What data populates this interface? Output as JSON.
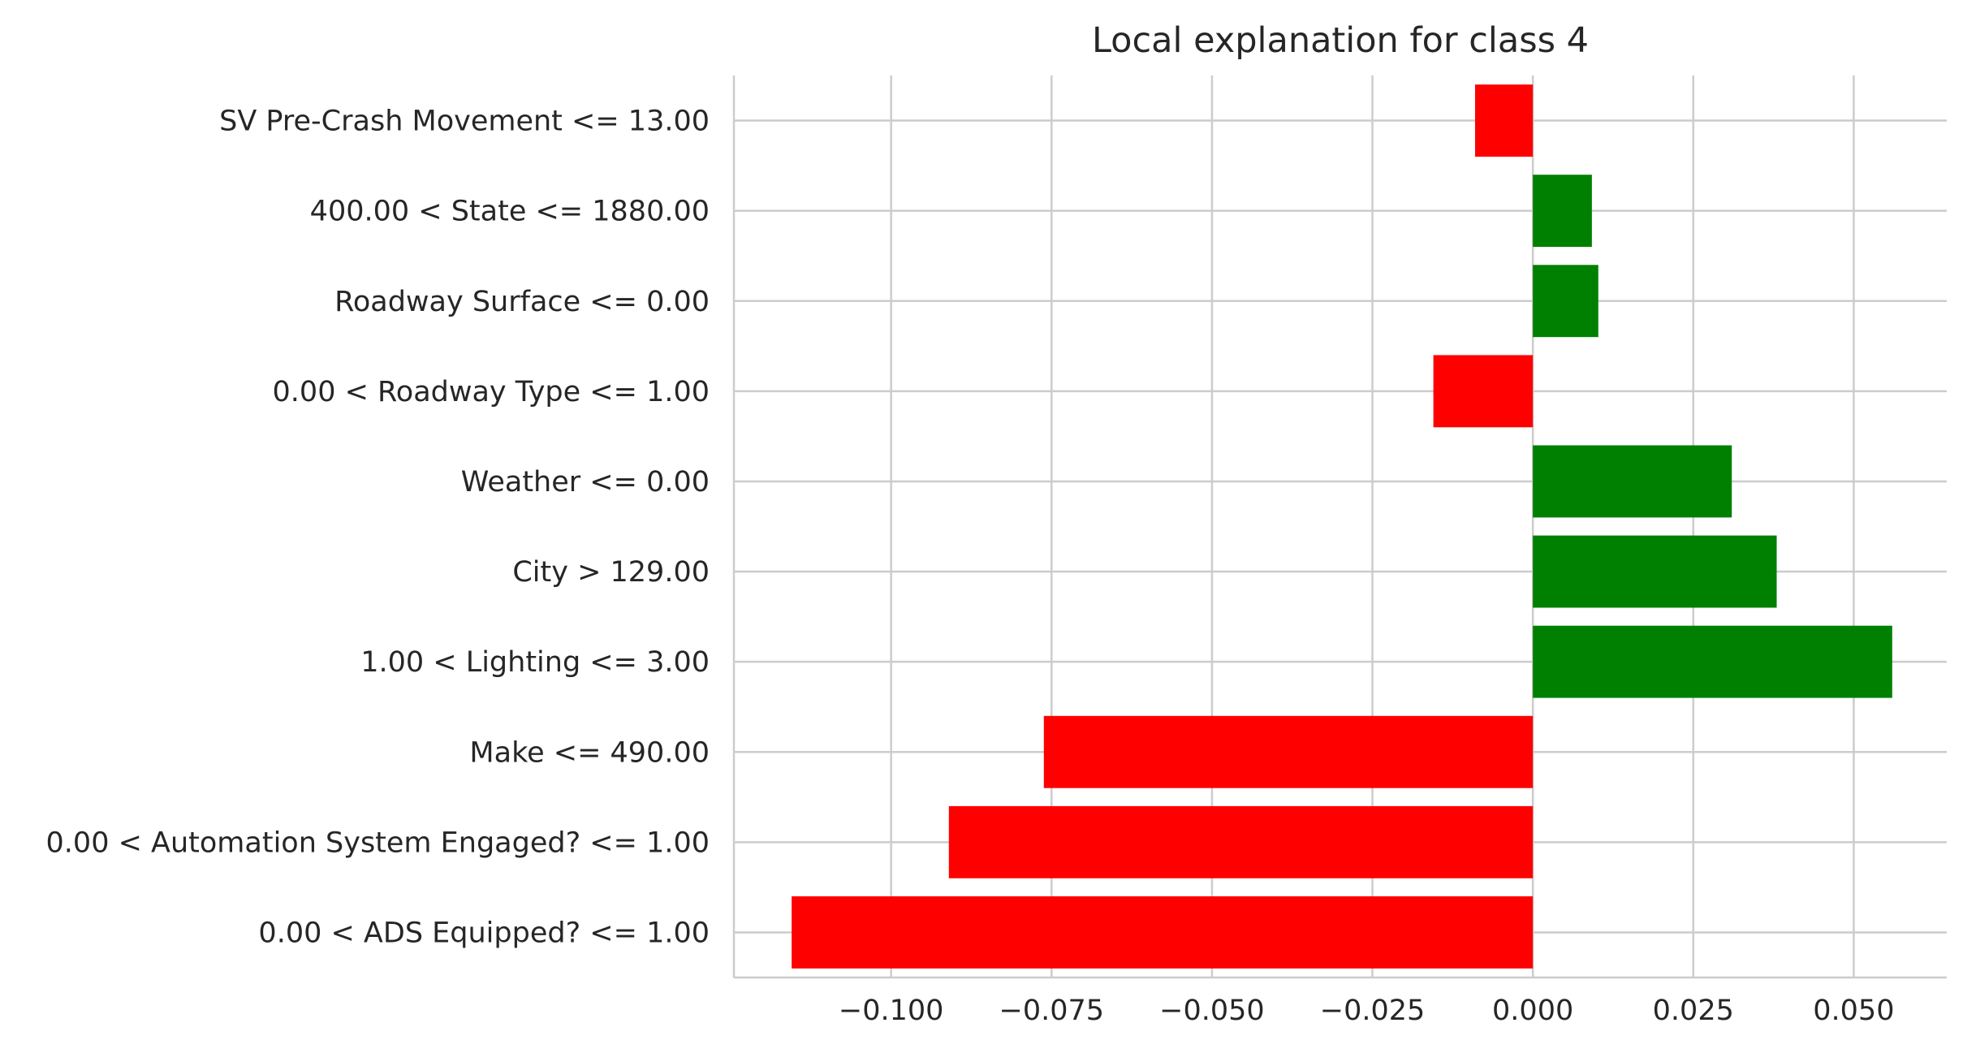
{
  "chart_data": {
    "type": "bar",
    "orientation": "horizontal",
    "title": "Local explanation for class 4",
    "xlabel": "",
    "ylabel": "",
    "categories": [
      "0.00 < ADS Equipped? <= 1.00",
      "0.00 < Automation System Engaged? <= 1.00",
      "Make <= 490.00",
      "1.00 < Lighting <= 3.00",
      "City > 129.00",
      "Weather <= 0.00",
      "0.00 < Roadway Type <= 1.00",
      "Roadway Surface <= 0.00",
      "400.00 < State <= 1880.00",
      "SV Pre-Crash Movement <= 13.00"
    ],
    "values": [
      -0.1155,
      -0.091,
      -0.0762,
      0.056,
      0.038,
      0.031,
      -0.0155,
      0.0102,
      0.0092,
      -0.009
    ],
    "xlim": [
      -0.1245,
      0.0645
    ],
    "xticks": [
      -0.1,
      -0.075,
      -0.05,
      -0.025,
      0.0,
      0.025,
      0.05
    ],
    "xtick_labels": [
      "−0.100",
      "−0.075",
      "−0.050",
      "−0.025",
      "0.000",
      "0.025",
      "0.050"
    ],
    "grid": true,
    "colors": {
      "positive": "#008000",
      "negative": "#ff0000",
      "grid": "#cccccc",
      "axis": "#cccccc",
      "text": "#262626"
    }
  }
}
